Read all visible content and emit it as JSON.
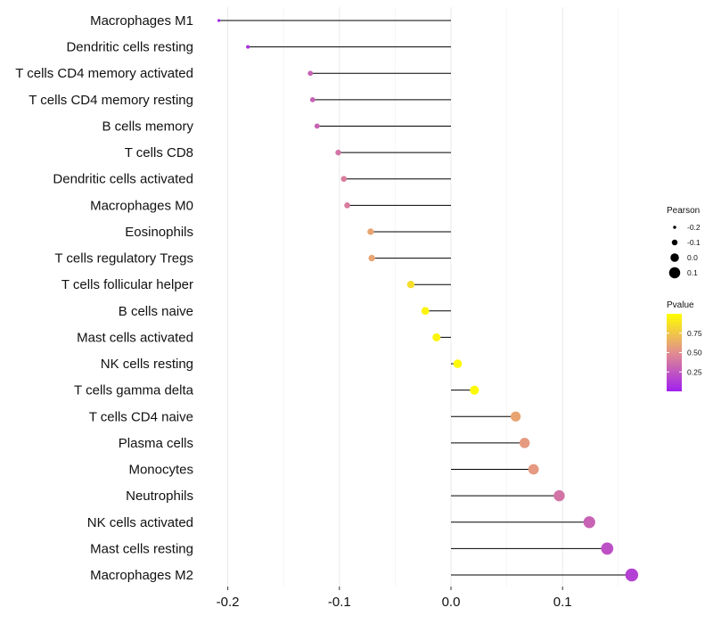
{
  "chart_data": {
    "type": "lollipop",
    "title": "",
    "xlabel": "",
    "ylabel": "",
    "xlim": [
      -0.225,
      0.17
    ],
    "x_ticks": [
      -0.2,
      -0.1,
      0.0,
      0.1
    ],
    "x_tick_labels": [
      "-0.2",
      "-0.1",
      "0.0",
      "0.1"
    ],
    "categories": [
      "Macrophages M1",
      "Dendritic cells resting",
      "T cells CD4 memory activated",
      "T cells CD4 memory resting",
      "B cells memory",
      "T cells CD8",
      "Dendritic cells activated",
      "Macrophages M0",
      "Eosinophils",
      "T cells regulatory  Tregs ",
      "T cells follicular helper",
      "B cells naive",
      "Mast cells activated",
      "NK cells resting",
      "T cells gamma delta",
      "T cells CD4 naive",
      "Plasma cells",
      "Monocytes",
      "Neutrophils",
      "NK cells activated",
      "Mast cells resting",
      "Macrophages M2"
    ],
    "values": [
      -0.208,
      -0.182,
      -0.126,
      -0.124,
      -0.12,
      -0.101,
      -0.096,
      -0.093,
      -0.072,
      -0.071,
      -0.036,
      -0.023,
      -0.013,
      0.006,
      0.021,
      0.058,
      0.066,
      0.074,
      0.097,
      0.124,
      0.14,
      0.162
    ],
    "pvalues": [
      0.02,
      0.05,
      0.3,
      0.3,
      0.3,
      0.38,
      0.42,
      0.42,
      0.6,
      0.6,
      0.85,
      0.95,
      0.95,
      0.98,
      0.98,
      0.6,
      0.55,
      0.55,
      0.38,
      0.3,
      0.22,
      0.15
    ],
    "legend_size": {
      "title": "Pearson",
      "labels": [
        "-0.2",
        "-0.1",
        "0.0",
        "0.1"
      ],
      "values": [
        -0.2,
        -0.1,
        0.0,
        0.1
      ]
    },
    "legend_color": {
      "title": "Pvalue",
      "labels": [
        "0.75",
        "0.50",
        "0.25"
      ],
      "values": [
        0.75,
        0.5,
        0.25
      ],
      "range": [
        0.0,
        1.0
      ],
      "low_color": "#a020f0",
      "mid_color": "#e28e8e",
      "high_color": "#ffff00"
    },
    "gridlines": true,
    "legend_position": "right"
  }
}
